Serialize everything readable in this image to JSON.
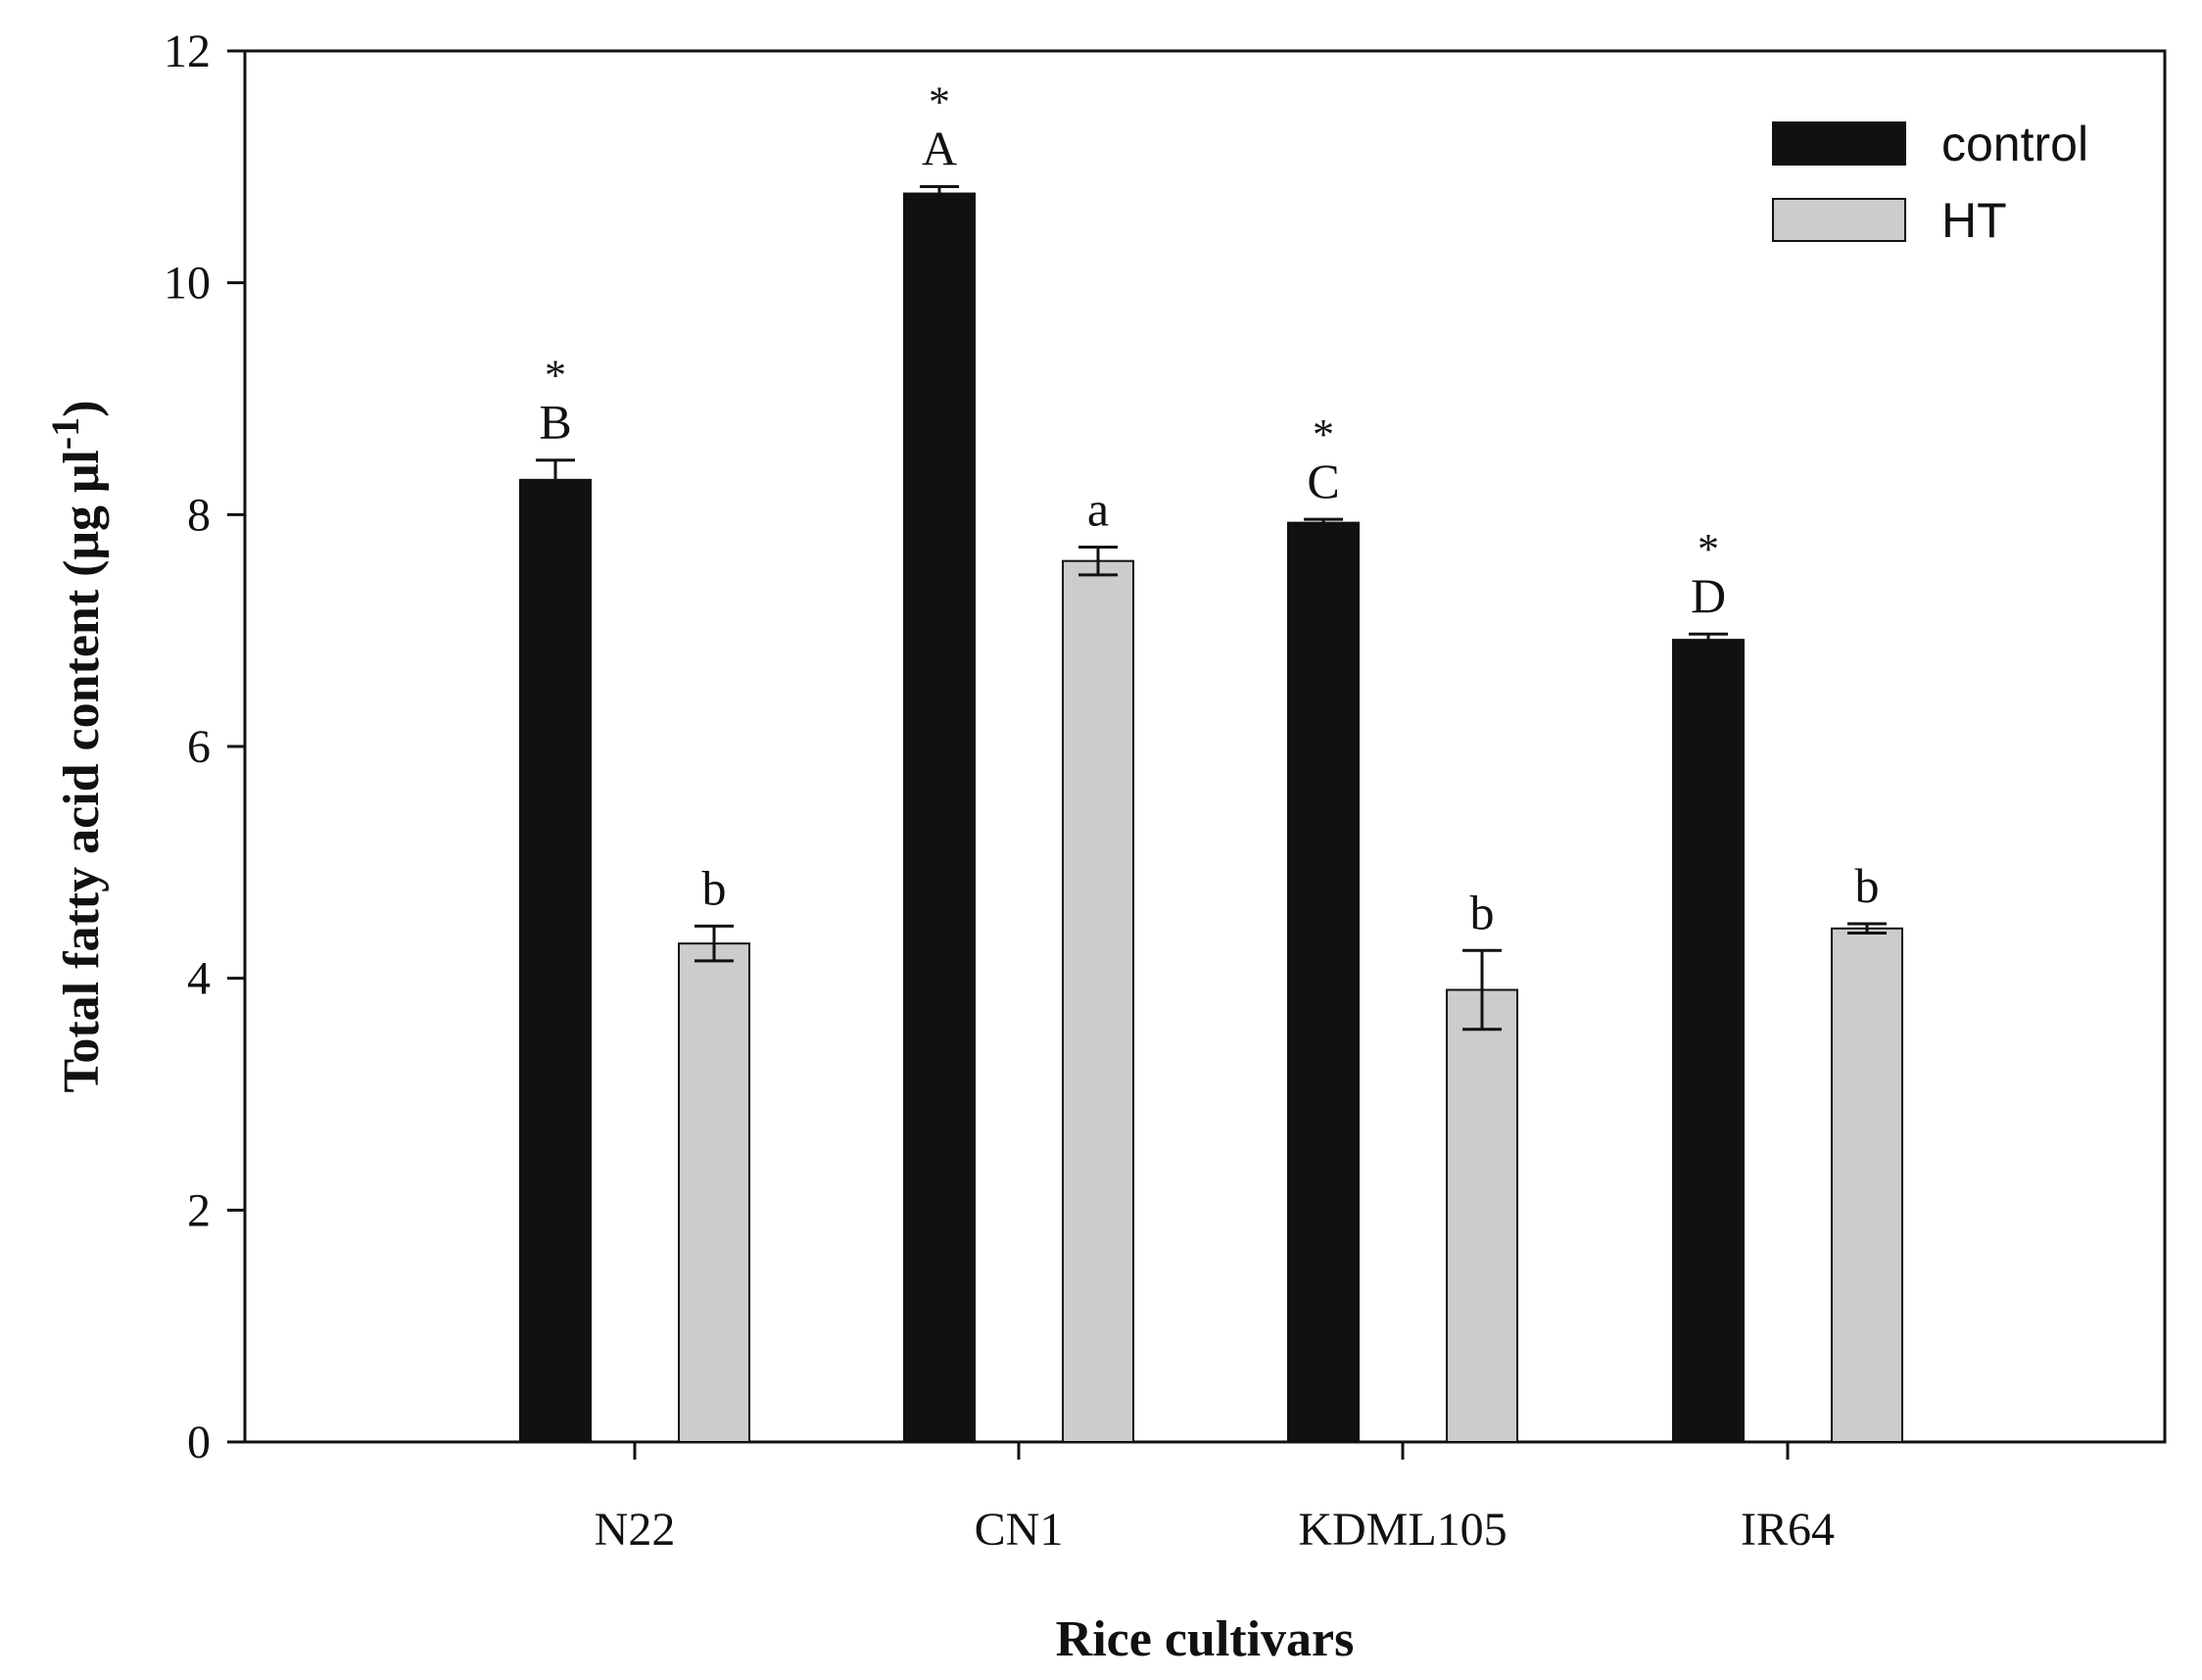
{
  "chart_data": {
    "type": "bar",
    "title": "",
    "xlabel": "Rice cultivars",
    "ylabel": "Total fatty acid  content (μg μl",
    "ylabel_superscript": "-1",
    "ylabel_close": ")",
    "ylim": [
      0,
      12
    ],
    "yticks": [
      "0",
      "2",
      "4",
      "6",
      "8",
      "10",
      "12"
    ],
    "grid": false,
    "legend_position": "top-right",
    "categories": [
      "N22",
      "CN1",
      "KDML105",
      "IR64"
    ],
    "series": [
      {
        "name": "control",
        "color": "#111111",
        "values": [
          8.3,
          10.77,
          7.93,
          6.92
        ],
        "errors": [
          0.17,
          0.06,
          0.03,
          0.05
        ],
        "letters": [
          "B",
          "A",
          "C",
          "D"
        ],
        "stars": [
          "*",
          "*",
          "*",
          "*"
        ]
      },
      {
        "name": "HT",
        "color": "#cccccc",
        "values": [
          4.3,
          7.6,
          3.9,
          4.43
        ],
        "errors": [
          0.15,
          0.12,
          0.34,
          0.04
        ],
        "letters": [
          "b",
          "a",
          "b",
          "b"
        ],
        "stars": [
          "",
          "",
          "",
          ""
        ]
      }
    ]
  }
}
